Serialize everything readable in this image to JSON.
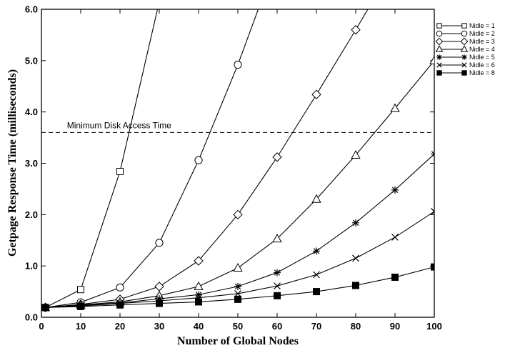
{
  "chart_data": {
    "type": "line",
    "xlabel": "Number of Global Nodes",
    "ylabel": "Getpage Response Time  (milliseconds)",
    "xlim": [
      0,
      100
    ],
    "ylim": [
      0,
      6
    ],
    "x_ticks": [
      0,
      10,
      20,
      30,
      40,
      50,
      60,
      70,
      80,
      90,
      100
    ],
    "y_ticks": [
      0,
      1,
      2,
      3,
      4,
      5,
      6
    ],
    "x_tick_labels": [
      "0",
      "10",
      "20",
      "30",
      "40",
      "50",
      "60",
      "70",
      "80",
      "90",
      "100"
    ],
    "y_tick_labels": [
      "0.0",
      "1.0",
      "2.0",
      "3.0",
      "4.0",
      "5.0",
      "6.0"
    ],
    "grid": false,
    "legend_position": "right",
    "annotations": [
      {
        "text": "Minimum Disk Access Time",
        "y": 3.6,
        "style": "dashed-horizontal-line"
      }
    ],
    "series": [
      {
        "name": "Nidle = 1",
        "marker": "square-open",
        "points": [
          [
            1,
            0.19
          ],
          [
            10,
            0.54
          ],
          [
            20,
            2.84
          ],
          [
            30,
            6.15
          ]
        ]
      },
      {
        "name": "Nidle = 2",
        "marker": "circle-open",
        "points": [
          [
            1,
            0.19
          ],
          [
            10,
            0.29
          ],
          [
            20,
            0.58
          ],
          [
            30,
            1.45
          ],
          [
            40,
            3.06
          ],
          [
            50,
            4.92
          ],
          [
            60,
            7.0
          ]
        ]
      },
      {
        "name": "Nidle = 3",
        "marker": "diamond-open",
        "points": [
          [
            1,
            0.19
          ],
          [
            10,
            0.25
          ],
          [
            20,
            0.35
          ],
          [
            30,
            0.6
          ],
          [
            40,
            1.1
          ],
          [
            50,
            2.0
          ],
          [
            60,
            3.12
          ],
          [
            70,
            4.34
          ],
          [
            80,
            5.6
          ],
          [
            90,
            6.9
          ]
        ]
      },
      {
        "name": "Nidle = 4",
        "marker": "triangle-open",
        "points": [
          [
            1,
            0.19
          ],
          [
            10,
            0.24
          ],
          [
            20,
            0.3
          ],
          [
            30,
            0.42
          ],
          [
            40,
            0.6
          ],
          [
            50,
            0.96
          ],
          [
            60,
            1.53
          ],
          [
            70,
            2.3
          ],
          [
            80,
            3.16
          ],
          [
            90,
            4.07
          ],
          [
            100,
            5.0
          ]
        ]
      },
      {
        "name": "Nidle = 5",
        "marker": "asterisk",
        "points": [
          [
            1,
            0.19
          ],
          [
            10,
            0.23
          ],
          [
            20,
            0.28
          ],
          [
            30,
            0.36
          ],
          [
            40,
            0.44
          ],
          [
            50,
            0.6
          ],
          [
            60,
            0.87
          ],
          [
            70,
            1.29
          ],
          [
            80,
            1.84
          ],
          [
            90,
            2.48
          ],
          [
            100,
            3.18
          ]
        ]
      },
      {
        "name": "Nidle = 6",
        "marker": "cross",
        "points": [
          [
            1,
            0.19
          ],
          [
            10,
            0.22
          ],
          [
            20,
            0.27
          ],
          [
            30,
            0.32
          ],
          [
            40,
            0.38
          ],
          [
            50,
            0.46
          ],
          [
            60,
            0.61
          ],
          [
            70,
            0.83
          ],
          [
            80,
            1.15
          ],
          [
            90,
            1.56
          ],
          [
            100,
            2.06
          ]
        ]
      },
      {
        "name": "Nidle = 8",
        "marker": "square-filled",
        "points": [
          [
            1,
            0.19
          ],
          [
            10,
            0.21
          ],
          [
            20,
            0.24
          ],
          [
            30,
            0.27
          ],
          [
            40,
            0.3
          ],
          [
            50,
            0.35
          ],
          [
            60,
            0.42
          ],
          [
            70,
            0.5
          ],
          [
            80,
            0.62
          ],
          [
            90,
            0.78
          ],
          [
            100,
            0.98
          ]
        ]
      }
    ]
  }
}
